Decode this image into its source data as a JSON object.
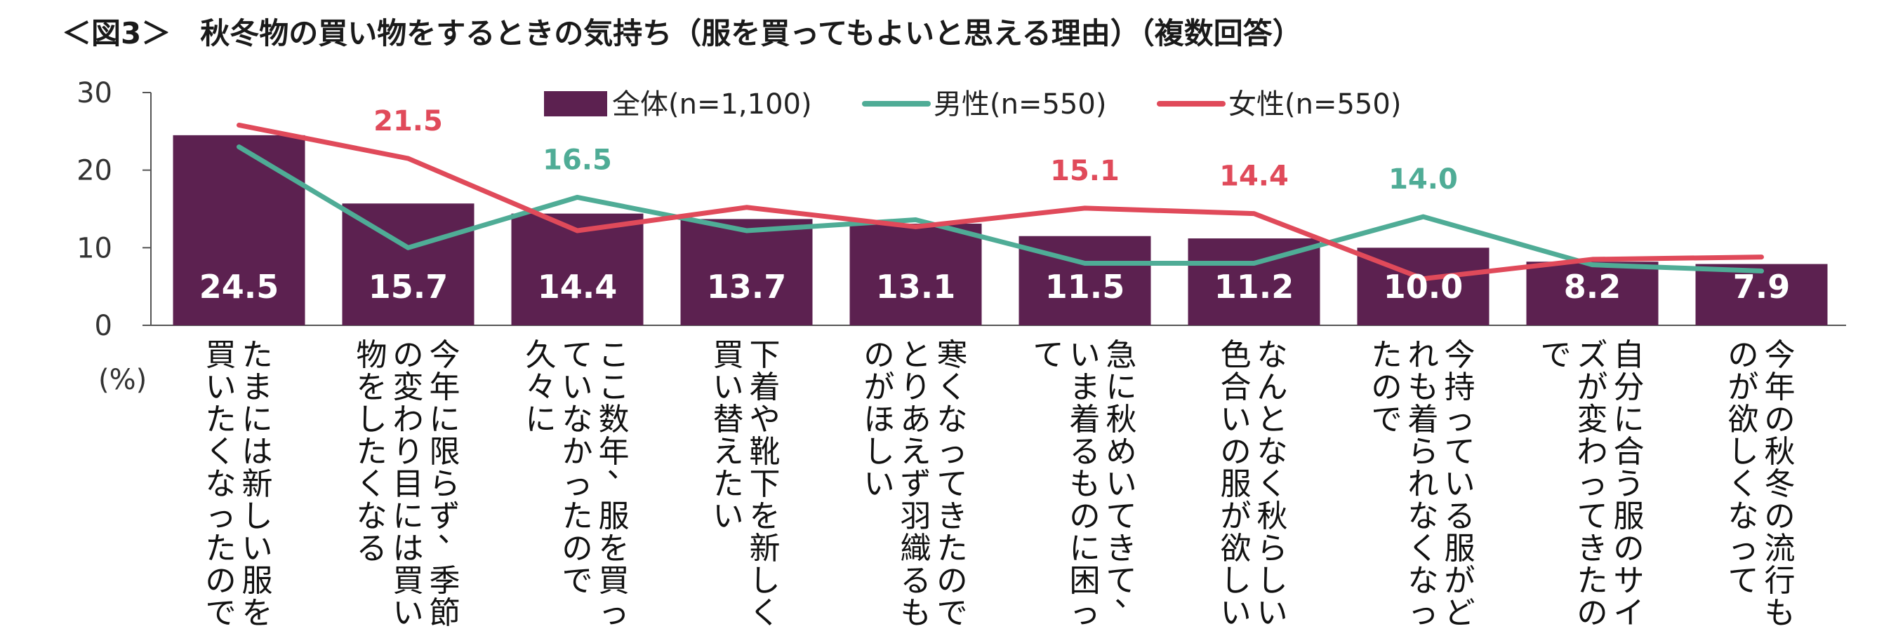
{
  "chart_data": {
    "type": "bar",
    "title": "＜図3＞　秋冬物の買い物をするときの気持ち（服を買ってもよいと思える理由）（複数回答）",
    "unit": "(%)",
    "ylim": [
      0,
      30
    ],
    "yticks": [
      "0",
      "10",
      "20",
      "30"
    ],
    "grid": false,
    "legend_position": "top",
    "colors": {
      "bar": "#5c2150",
      "male": "#4fac96",
      "female": "#e04a5a"
    },
    "categories": [
      [
        "たまには新しい服を",
        "買いたくなったので"
      ],
      [
        "今年に限らず、季節",
        "の変わり目には買い",
        "物をしたくなる"
      ],
      [
        "ここ数年、服を買っ",
        "ていなかったので",
        "久々に"
      ],
      [
        "下着や靴下を新しく",
        "買い替えたい"
      ],
      [
        "寒くなってきたので",
        "とりあえず羽織るも",
        "のがほしい"
      ],
      [
        "急に秋めいてきて、",
        "いま着るものに困っ",
        "て"
      ],
      [
        "なんとなく秋らしい",
        "色合いの服が欲しい"
      ],
      [
        "今持っている服がど",
        "れも着られなくなっ",
        "たので"
      ],
      [
        "自分に合う服のサイ",
        "ズが変わってきたの",
        "で"
      ],
      [
        "今年の秋冬の流行も",
        "のが欲しくなって"
      ]
    ],
    "series": [
      {
        "name": "全体(n=1,100)",
        "type": "bar",
        "values": [
          24.5,
          15.7,
          14.4,
          13.7,
          13.1,
          11.5,
          11.2,
          10.0,
          8.2,
          7.9
        ],
        "value_labels": [
          "24.5",
          "15.7",
          "14.4",
          "13.7",
          "13.1",
          "11.5",
          "11.2",
          "10.0",
          "8.2",
          "7.9"
        ]
      },
      {
        "name": "男性(n=550)",
        "type": "line",
        "values": [
          23.0,
          10.0,
          16.5,
          12.2,
          13.6,
          8.0,
          8.0,
          14.0,
          7.8,
          7.0
        ]
      },
      {
        "name": "女性(n=550)",
        "type": "line",
        "values": [
          25.8,
          21.5,
          12.2,
          15.2,
          12.7,
          15.1,
          14.4,
          6.0,
          8.5,
          8.8
        ]
      }
    ],
    "annotations": [
      {
        "series": 2,
        "index": 1,
        "text": "21.5"
      },
      {
        "series": 1,
        "index": 2,
        "text": "16.5"
      },
      {
        "series": 2,
        "index": 5,
        "text": "15.1"
      },
      {
        "series": 2,
        "index": 6,
        "text": "14.4"
      },
      {
        "series": 1,
        "index": 7,
        "text": "14.0"
      }
    ]
  }
}
